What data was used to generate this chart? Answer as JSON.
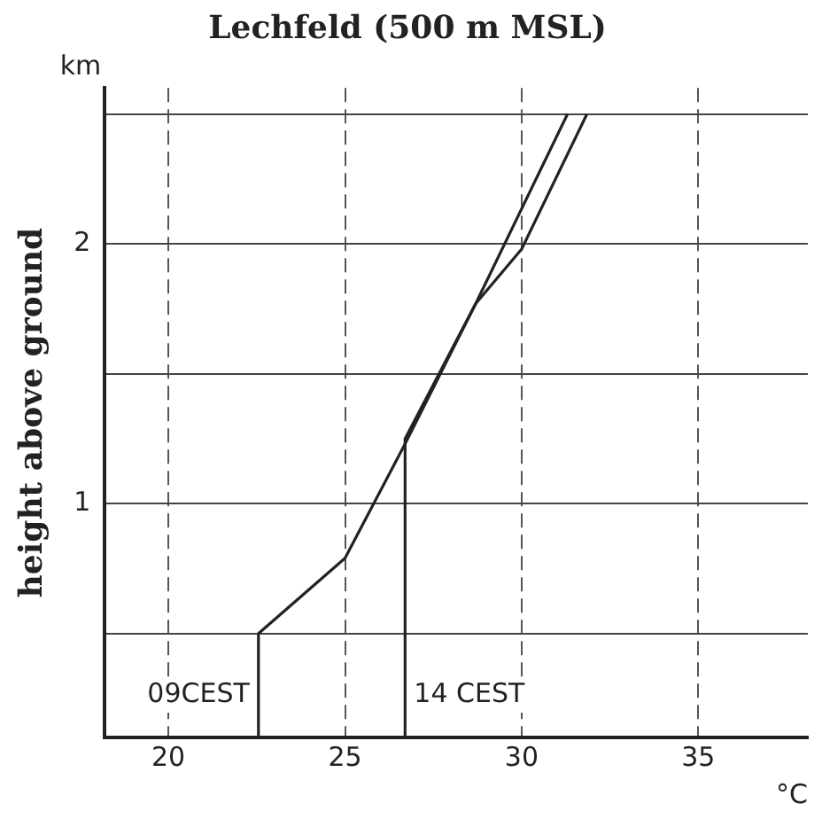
{
  "chart_data": {
    "type": "line",
    "title": "Lechfeld (500 m MSL)",
    "xlabel": "°C",
    "ylabel": "height above ground",
    "annotations": [
      "km"
    ],
    "xlim": [
      18.2,
      38.1
    ],
    "xticks": [
      20,
      25,
      30,
      35
    ],
    "ylim": [
      0.1,
      2.6
    ],
    "yticks": [
      {
        "value": 0.5,
        "label": null
      },
      1,
      {
        "value": 1.5,
        "label": null
      },
      2,
      {
        "value": 2.5,
        "label": null
      }
    ],
    "grid": true,
    "legend": false,
    "marker": "none",
    "line_style": "solid",
    "series": [
      {
        "name": "09CEST",
        "color": "#222222",
        "x": [
          22.55,
          22.55,
          25.0,
          26.7,
          28.7,
          30.0,
          31.85
        ],
        "values": [
          0.1,
          0.5,
          0.79,
          1.23,
          1.77,
          1.98,
          2.5
        ]
      },
      {
        "name": "14 CEST",
        "color": "#222222",
        "x": [
          26.7,
          26.7,
          28.7,
          31.3
        ],
        "values": [
          0.1,
          1.25,
          1.77,
          2.5
        ]
      }
    ]
  }
}
